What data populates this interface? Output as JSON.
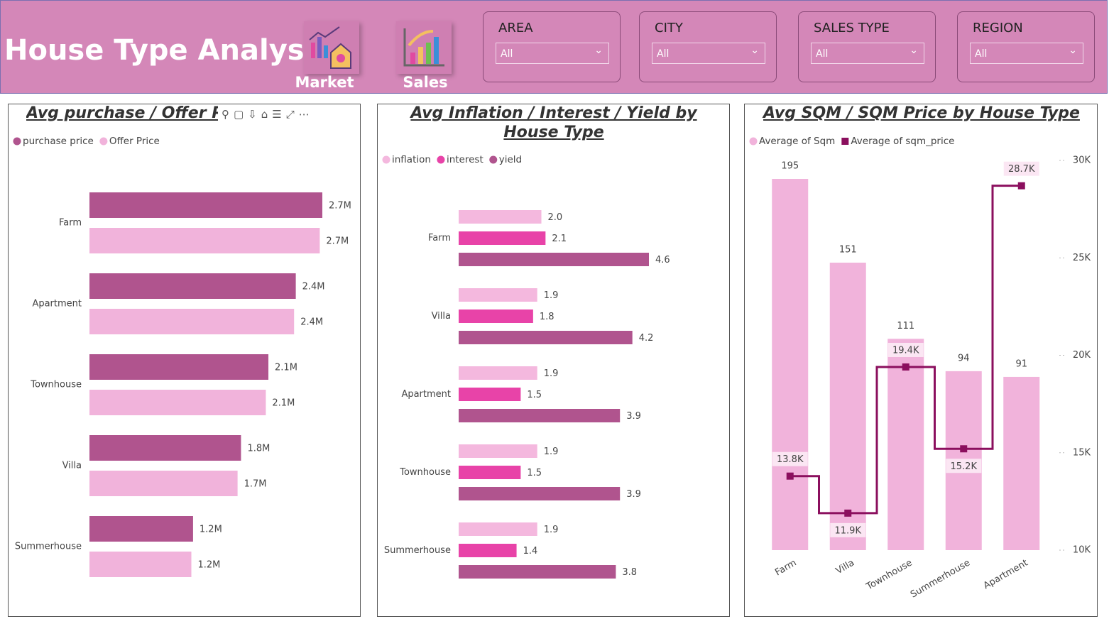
{
  "header": {
    "title": "House Type Analysis",
    "buttons": [
      "Market",
      "Sales"
    ],
    "slicers": [
      {
        "label": "AREA",
        "value": "All"
      },
      {
        "label": "CITY",
        "value": "All"
      },
      {
        "label": "SALES TYPE",
        "value": "All"
      },
      {
        "label": "REGION",
        "value": "All"
      }
    ]
  },
  "chart_data": [
    {
      "type": "bar",
      "orientation": "horizontal",
      "title": "Avg purchase / Offer Pric",
      "categories": [
        "Farm",
        "Apartment",
        "Townhouse",
        "Villa",
        "Summerhouse"
      ],
      "series": [
        {
          "name": "purchase price",
          "color": "#b0548e",
          "values": [
            2720000,
            2410000,
            2090000,
            1770000,
            1210000
          ],
          "value_labels": [
            "2.7M",
            "2.4M",
            "2.1M",
            "1.8M",
            "1.2M"
          ]
        },
        {
          "name": "Offer Price",
          "color": "#f1b3db",
          "values": [
            2690000,
            2390000,
            2060000,
            1730000,
            1190000
          ],
          "value_labels": [
            "2.7M",
            "2.4M",
            "2.1M",
            "1.7M",
            "1.2M"
          ]
        }
      ]
    },
    {
      "type": "bar",
      "orientation": "horizontal",
      "title": "Avg Inflation / Interest / Yield by House Type",
      "categories": [
        "Farm",
        "Villa",
        "Apartment",
        "Townhouse",
        "Summerhouse"
      ],
      "series": [
        {
          "name": "inflation",
          "color": "#f4b8de",
          "values": [
            2.0,
            1.9,
            1.9,
            1.9,
            1.9
          ],
          "value_labels": [
            "2.0",
            "1.9",
            "1.9",
            "1.9",
            "1.9"
          ]
        },
        {
          "name": "interest",
          "color": "#e843a8",
          "values": [
            2.1,
            1.8,
            1.5,
            1.5,
            1.4
          ],
          "value_labels": [
            "2.1",
            "1.8",
            "1.5",
            "1.5",
            "1.4"
          ]
        },
        {
          "name": "yield",
          "color": "#b0548e",
          "values": [
            4.6,
            4.2,
            3.9,
            3.9,
            3.8
          ],
          "value_labels": [
            "4.6",
            "4.2",
            "3.9",
            "3.9",
            "3.8"
          ]
        }
      ]
    },
    {
      "type": "combo",
      "title": "Avg SQM / SQM Price by House Type",
      "categories": [
        "Farm",
        "Villa",
        "Townhouse",
        "Summerhouse",
        "Apartment"
      ],
      "series": [
        {
          "name": "Average of Sqm",
          "type": "bar",
          "color": "#f1b3db",
          "values": [
            195,
            151,
            111,
            94,
            91
          ]
        },
        {
          "name": "Average of sqm_price",
          "type": "line",
          "step": true,
          "axis": "y2",
          "color": "#8b0f5e",
          "values": [
            13800,
            11900,
            19400,
            15200,
            28700
          ],
          "value_labels": [
            "13.8K",
            "11.9K",
            "19.4K",
            "15.2K",
            "28.7K"
          ]
        }
      ],
      "y2lim": [
        10000,
        30000
      ],
      "y2ticks": [
        {
          "value": 10000,
          "label": "10K"
        },
        {
          "value": 15000,
          "label": "15K"
        },
        {
          "value": 20000,
          "label": "20K"
        },
        {
          "value": 25000,
          "label": "25K"
        },
        {
          "value": 30000,
          "label": "30K"
        }
      ]
    }
  ]
}
